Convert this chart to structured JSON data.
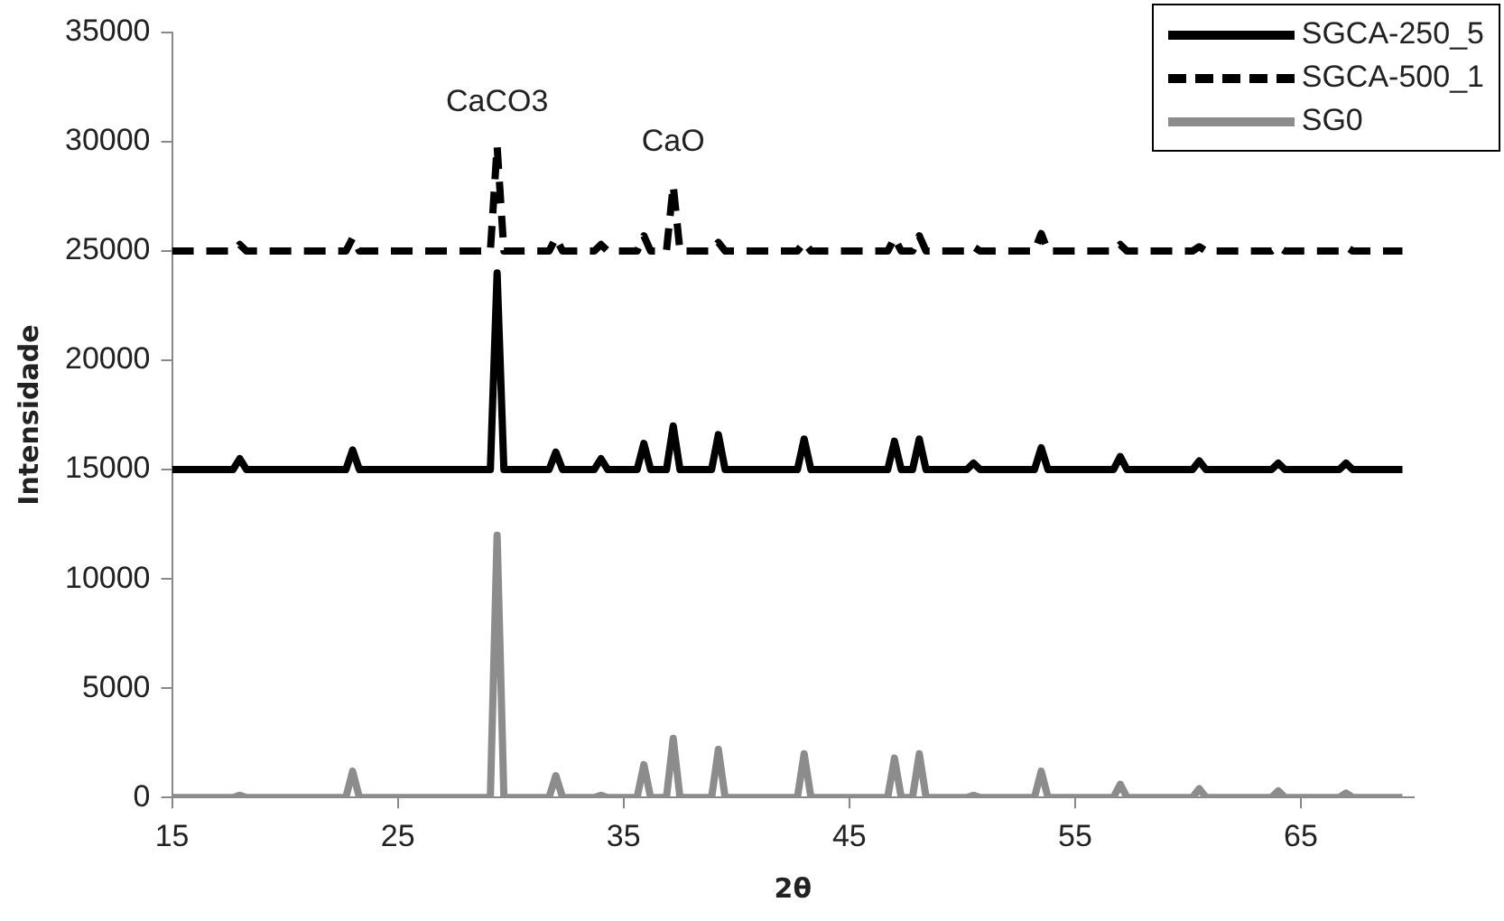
{
  "chart_data": {
    "type": "line",
    "xlabel": "2θ",
    "ylabel": "Intensidade",
    "marker": "none",
    "grid": false,
    "legend": "top right",
    "xlim": [
      15,
      70
    ],
    "xticks": [
      15,
      25,
      35,
      45,
      55,
      65
    ],
    "ylim": [
      0,
      35000
    ],
    "yticks": [
      0,
      5000,
      10000,
      15000,
      20000,
      25000,
      30000,
      35000
    ],
    "x": [
      15,
      17.7,
      18,
      18.3,
      22.7,
      23,
      23.3,
      29.1,
      29.4,
      29.7,
      31.7,
      32,
      32.3,
      33.7,
      34,
      34.3,
      35.6,
      35.9,
      36.2,
      36.9,
      37.2,
      37.5,
      38.9,
      39.2,
      39.5,
      42.7,
      43,
      43.3,
      46.7,
      47,
      47.3,
      47.8,
      48.1,
      48.4,
      50.2,
      50.5,
      50.8,
      53.2,
      53.5,
      53.8,
      56.7,
      57,
      57.3,
      60.2,
      60.5,
      60.8,
      63.7,
      64,
      64.3,
      66.7,
      67,
      67.3,
      69.5
    ],
    "series": [
      {
        "name": "SGCA-250_5",
        "color": "#000000",
        "line_style": "solid",
        "values": [
          15000,
          15000,
          15500,
          15000,
          15000,
          15900,
          15000,
          15000,
          24000,
          15000,
          15000,
          15800,
          15000,
          15000,
          15500,
          15000,
          15000,
          16200,
          15000,
          15000,
          17000,
          15000,
          15000,
          16600,
          15000,
          15000,
          16400,
          15000,
          15000,
          16300,
          15000,
          15000,
          16400,
          15000,
          15000,
          15300,
          15000,
          15000,
          16000,
          15000,
          15000,
          15600,
          15000,
          15000,
          15400,
          15000,
          15000,
          15300,
          15000,
          15000,
          15300,
          15000,
          15000
        ]
      },
      {
        "name": "SGCA-500_1",
        "color": "#000000",
        "line_style": "dashed",
        "values": [
          25000,
          25000,
          25300,
          25000,
          25000,
          25600,
          25000,
          25000,
          29800,
          25000,
          25000,
          25600,
          25000,
          25000,
          25300,
          25000,
          25000,
          25700,
          25000,
          25000,
          28000,
          25000,
          25000,
          25400,
          25000,
          25000,
          25400,
          25000,
          25000,
          25600,
          25000,
          25000,
          25700,
          25000,
          25000,
          25200,
          25000,
          25000,
          25800,
          25000,
          25000,
          25300,
          25000,
          25000,
          25200,
          25000,
          25000,
          25200,
          25000,
          25000,
          25200,
          25000,
          25000
        ]
      },
      {
        "name": "SG0",
        "color": "#8c8c8c",
        "line_style": "solid",
        "values": [
          0,
          0,
          100,
          0,
          0,
          1200,
          0,
          0,
          12000,
          0,
          0,
          1000,
          0,
          0,
          100,
          0,
          0,
          1500,
          0,
          0,
          2700,
          0,
          0,
          2200,
          0,
          0,
          2000,
          0,
          0,
          1800,
          0,
          0,
          2000,
          0,
          0,
          100,
          0,
          0,
          1200,
          0,
          0,
          600,
          0,
          0,
          400,
          0,
          0,
          300,
          0,
          0,
          200,
          0,
          0
        ]
      }
    ],
    "annotations": [
      {
        "text": "CaCO3",
        "x": 29.4,
        "y": 29800
      },
      {
        "text": "CaO",
        "x": 37.2,
        "y": 28000
      }
    ]
  }
}
